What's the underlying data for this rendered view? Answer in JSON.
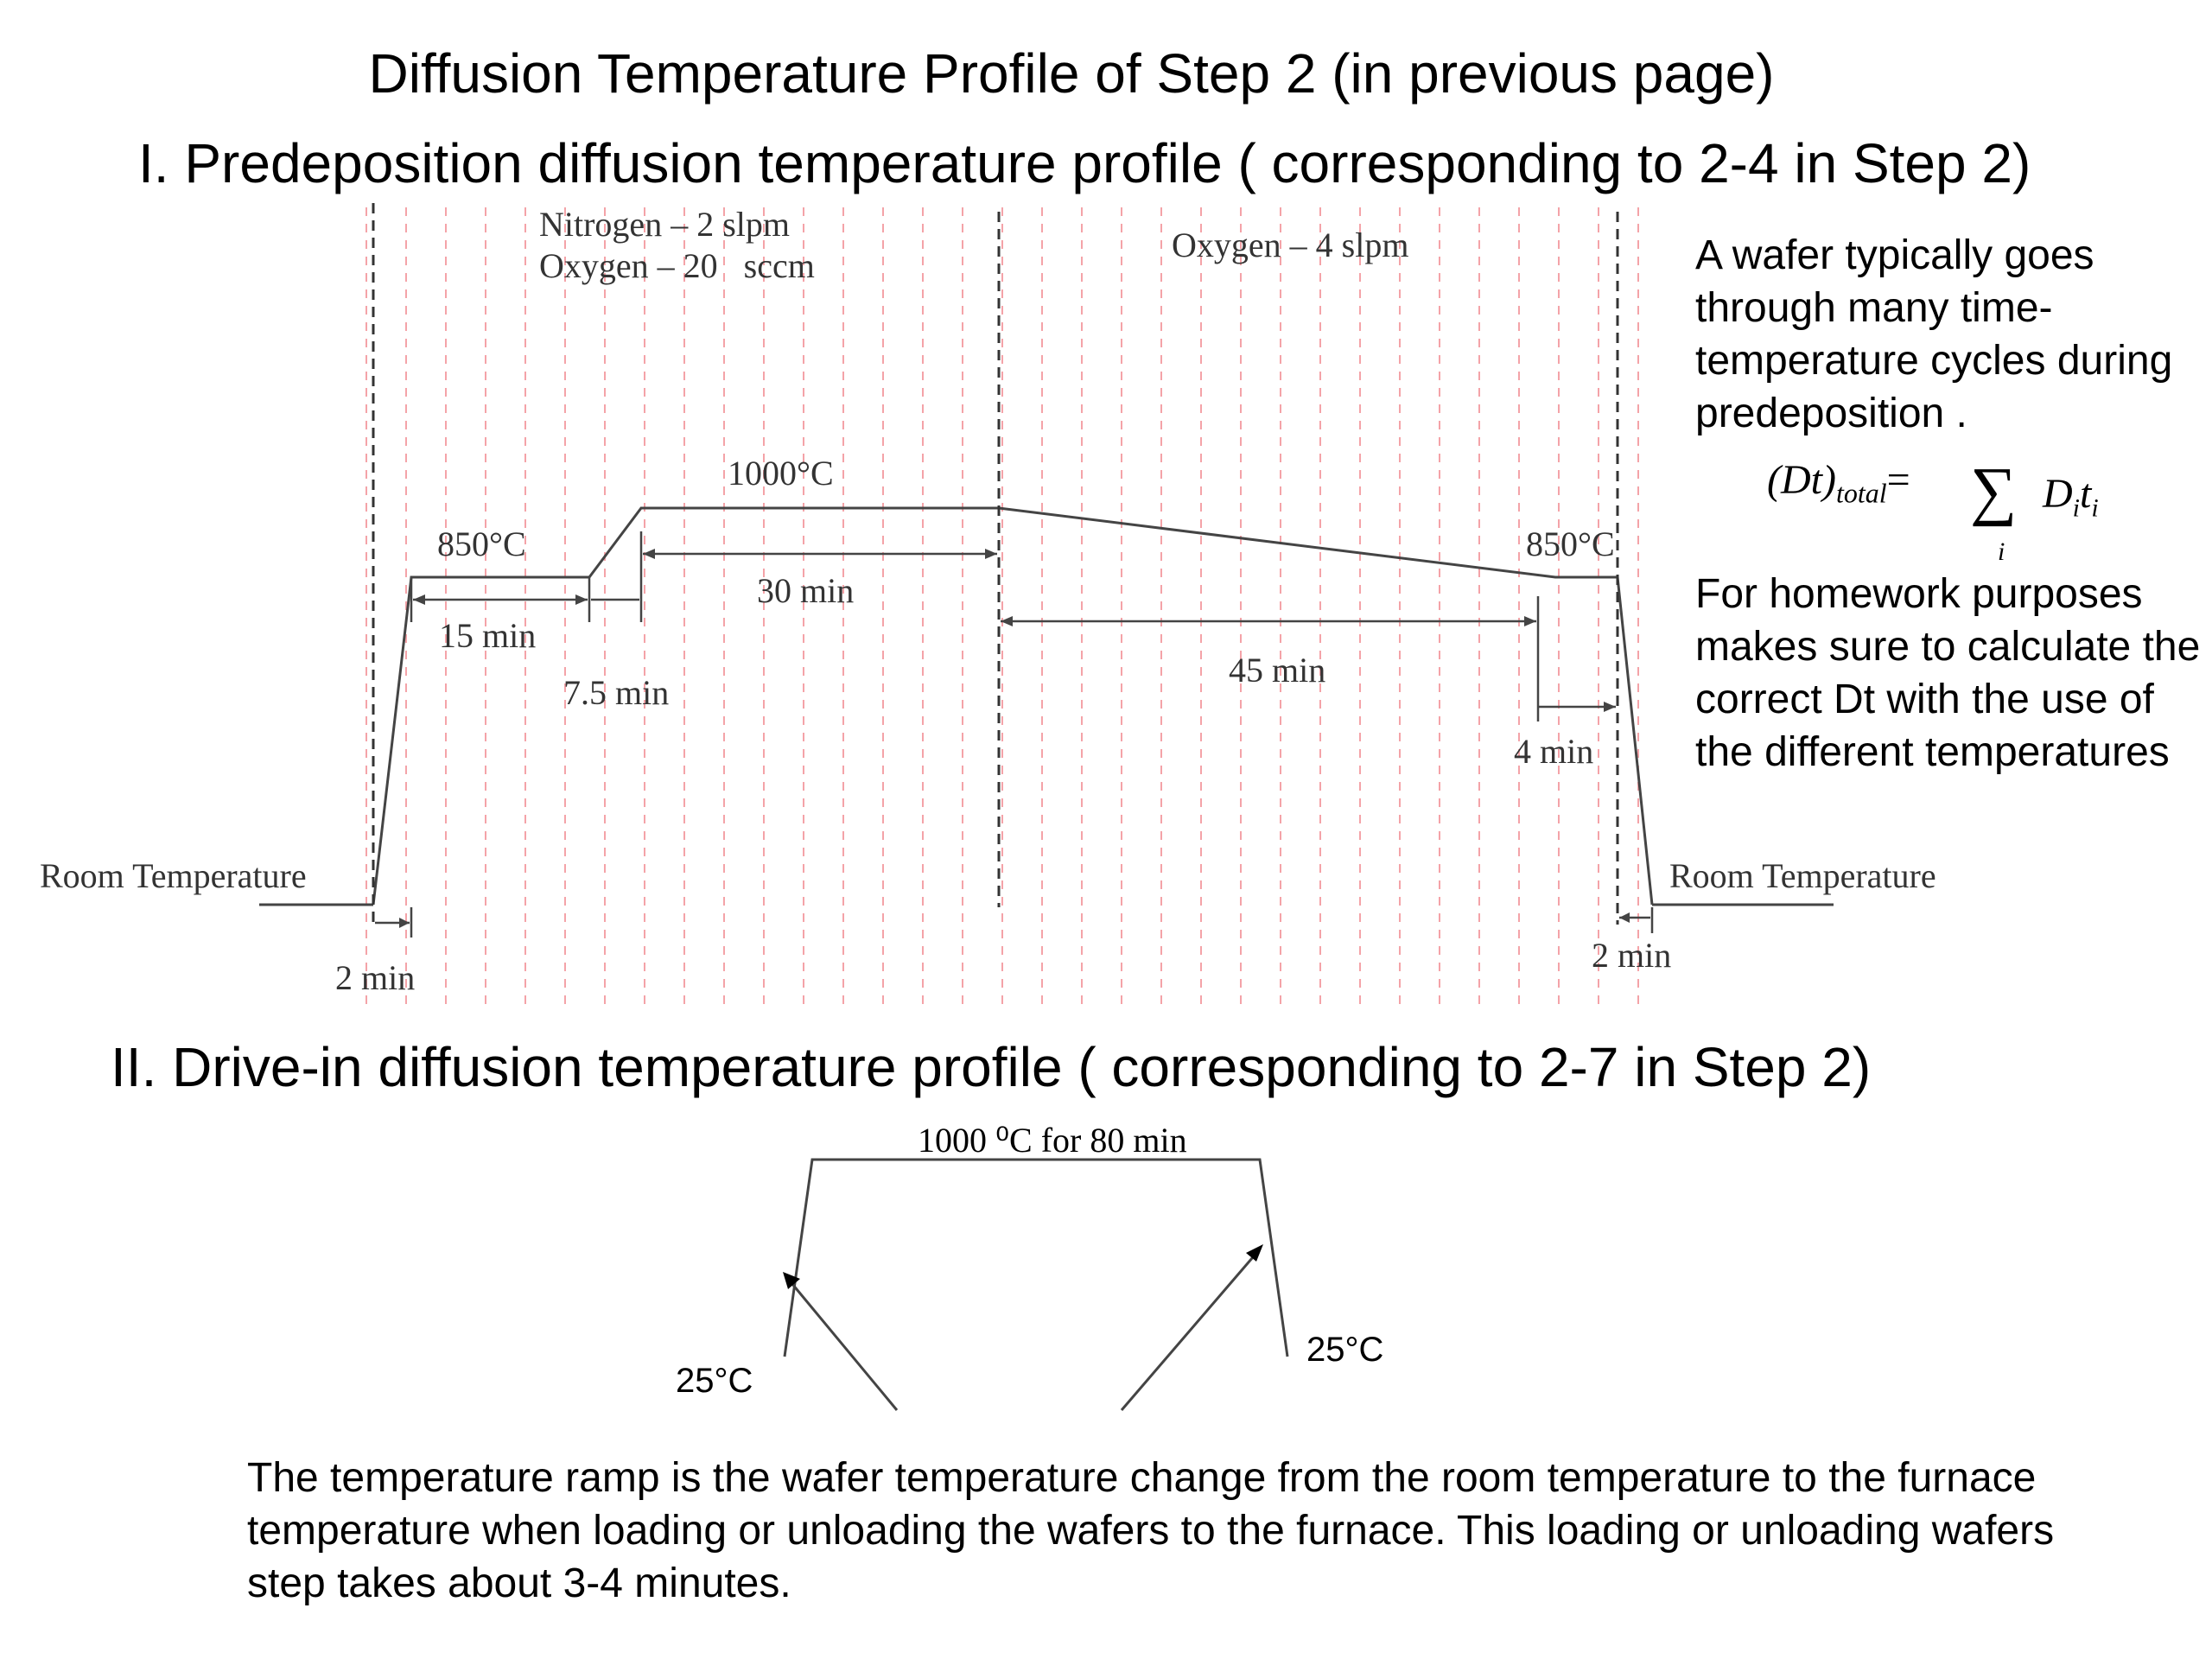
{
  "title": "Diffusion Temperature Profile of Step 2 (in previous page)",
  "section1": {
    "heading": "I. Predeposition diffusion temperature profile ( corresponding to 2-4 in Step 2)",
    "gas_left_line1": "Nitrogen – 2 slpm",
    "gas_left_line2": "Oxygen – 20   sccm",
    "gas_right": "Oxygen – 4 slpm",
    "temp_850_left": "850°C",
    "temp_1000": "1000°C",
    "temp_850_right": "850°C",
    "t_15": "15 min",
    "t_7_5": "7.5 min",
    "t_30": "30 min",
    "t_45": "45 min",
    "t_4": "4 min",
    "t_2_left": "2 min",
    "t_2_right": "2 min",
    "room_left": "Room Temperature",
    "room_right": "Room Temperature",
    "side_note": "A wafer typically goes through many time-temperature cycles during predeposition .",
    "formula_lhs": "(Dt)",
    "formula_sub": "total",
    "formula_eq": "=",
    "formula_sum": "∑",
    "formula_index": "i",
    "formula_rhs_D": "D",
    "formula_rhs_t": "t",
    "formula_rhs_sub": "i",
    "homework_note": "For homework purposes makes sure to calculate the correct Dt with the use of the different temperatures"
  },
  "section2": {
    "heading": "II. Drive-in diffusion temperature profile ( corresponding to 2-7 in Step 2)",
    "plateau_label": "1000 ⁰C for 80 min",
    "temp_left": "25°C",
    "temp_right": "25°C",
    "footer_note": "The temperature ramp is the wafer temperature change from the room temperature to the furnace temperature when loading or unloading the wafers to the furnace.  This loading or unloading wafers step takes about 3-4 minutes."
  }
}
